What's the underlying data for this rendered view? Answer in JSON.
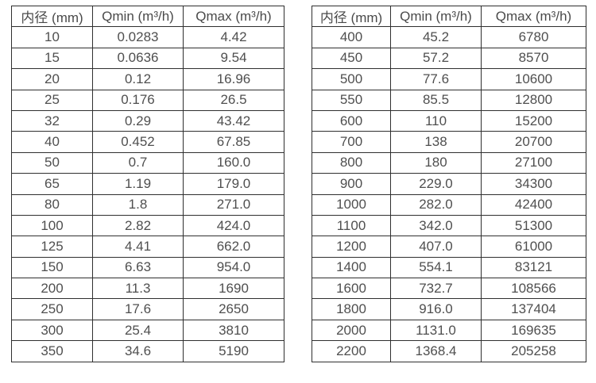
{
  "page": {
    "background_color": "#ffffff",
    "border_color": "#2f2f2f",
    "text_color": "#4f4f4f"
  },
  "tables": [
    {
      "name": "flow-rate-table-small-diameters",
      "headers": [
        "内径 (mm)",
        "Qmin (m³/h)",
        "Qmax (m³/h)"
      ],
      "rows": [
        [
          "10",
          "0.0283",
          "4.42"
        ],
        [
          "15",
          "0.0636",
          "9.54"
        ],
        [
          "20",
          "0.12",
          "16.96"
        ],
        [
          "25",
          "0.176",
          "26.5"
        ],
        [
          "32",
          "0.29",
          "43.42"
        ],
        [
          "40",
          "0.452",
          "67.85"
        ],
        [
          "50",
          "0.7",
          "160.0"
        ],
        [
          "65",
          "1.19",
          "179.0"
        ],
        [
          "80",
          "1.8",
          "271.0"
        ],
        [
          "100",
          "2.82",
          "424.0"
        ],
        [
          "125",
          "4.41",
          "662.0"
        ],
        [
          "150",
          "6.63",
          "954.0"
        ],
        [
          "200",
          "11.3",
          "1690"
        ],
        [
          "250",
          "17.6",
          "2650"
        ],
        [
          "300",
          "25.4",
          "3810"
        ],
        [
          "350",
          "34.6",
          "5190"
        ]
      ]
    },
    {
      "name": "flow-rate-table-large-diameters",
      "headers": [
        "内径 (mm)",
        "Qmin (m³/h)",
        "Qmax (m³/h)"
      ],
      "rows": [
        [
          "400",
          "45.2",
          "6780"
        ],
        [
          "450",
          "57.2",
          "8570"
        ],
        [
          "500",
          "77.6",
          "10600"
        ],
        [
          "550",
          "85.5",
          "12800"
        ],
        [
          "600",
          "110",
          "15200"
        ],
        [
          "700",
          "138",
          "20700"
        ],
        [
          "800",
          "180",
          "27100"
        ],
        [
          "900",
          "229.0",
          "34300"
        ],
        [
          "1000",
          "282.0",
          "42400"
        ],
        [
          "1100",
          "342.0",
          "51300"
        ],
        [
          "1200",
          "407.0",
          "61000"
        ],
        [
          "1400",
          "554.1",
          "83121"
        ],
        [
          "1600",
          "732.7",
          "108566"
        ],
        [
          "1800",
          "916.0",
          "137404"
        ],
        [
          "2000",
          "1131.0",
          "169635"
        ],
        [
          "2200",
          "1368.4",
          "205258"
        ]
      ]
    }
  ]
}
